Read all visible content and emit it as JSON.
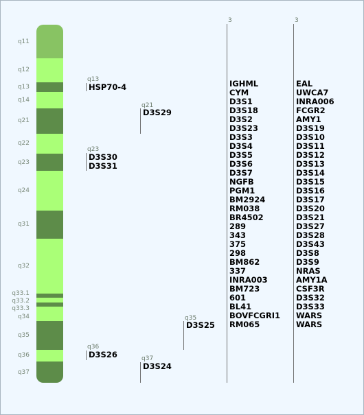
{
  "colors": {
    "light": "#aaff77",
    "dark": "#5d8c49",
    "cap": "#88c363"
  },
  "bands": [
    {
      "label": "q11",
      "shade": "cap"
    },
    {
      "label": "q12",
      "shade": "light"
    },
    {
      "label": "q13",
      "shade": "dark"
    },
    {
      "label": "q14",
      "shade": "light"
    },
    {
      "label": "q21",
      "shade": "dark"
    },
    {
      "label": "q22",
      "shade": "light"
    },
    {
      "label": "q23",
      "shade": "dark"
    },
    {
      "label": "q24",
      "shade": "light"
    },
    {
      "label": "q31",
      "shade": "dark"
    },
    {
      "label": "q32",
      "shade": "light"
    },
    {
      "label": "q33.1",
      "shade": "dark"
    },
    {
      "label": "q33.2",
      "shade": "light"
    },
    {
      "label": "q33.3",
      "shade": "dark"
    },
    {
      "label": "q34",
      "shade": "light"
    },
    {
      "label": "q35",
      "shade": "dark"
    },
    {
      "label": "q36",
      "shade": "light"
    },
    {
      "label": "q37",
      "shade": "dark"
    }
  ],
  "gene_groups": [
    {
      "location": "q13",
      "genes": [
        "HSP70-4"
      ]
    },
    {
      "location": "q21",
      "genes": [
        "D3S29"
      ]
    },
    {
      "location": "q23",
      "genes": [
        "D3S30",
        "D3S31"
      ]
    },
    {
      "location": "q35",
      "genes": [
        "D3S25"
      ]
    },
    {
      "location": "q36",
      "genes": [
        "D3S26"
      ]
    },
    {
      "location": "q37",
      "genes": [
        "D3S24"
      ]
    }
  ],
  "columns": [
    {
      "location": "3",
      "genes": [
        "IGHML",
        "CYM",
        "D3S1",
        "D3S18",
        "D3S2",
        "D3S23",
        "D3S3",
        "D3S4",
        "D3S5",
        "D3S6",
        "D3S7",
        "NGFB",
        "PGM1",
        "BM2924",
        "RM038",
        "BR4502",
        "289",
        "343",
        "375",
        "298",
        "BM862",
        "337",
        "INRA003",
        "BM723",
        "601",
        "BL41",
        "BOVFCGRI1",
        "RM065"
      ]
    },
    {
      "location": "3",
      "genes": [
        "EAL",
        "UWCA7",
        "INRA006",
        "FCGR2",
        "AMY1",
        "D3S19",
        "D3S10",
        "D3S11",
        "D3S12",
        "D3S13",
        "D3S14",
        "D3S15",
        "D3S16",
        "D3S17",
        "D3S20",
        "D3S21",
        "D3S27",
        "D3S28",
        "D3S43",
        "D3S8",
        "D3S9",
        "NRAS",
        "AMY1A",
        "CSF3R",
        "D3S32",
        "D3S33",
        "WARS",
        "WARS"
      ]
    }
  ]
}
